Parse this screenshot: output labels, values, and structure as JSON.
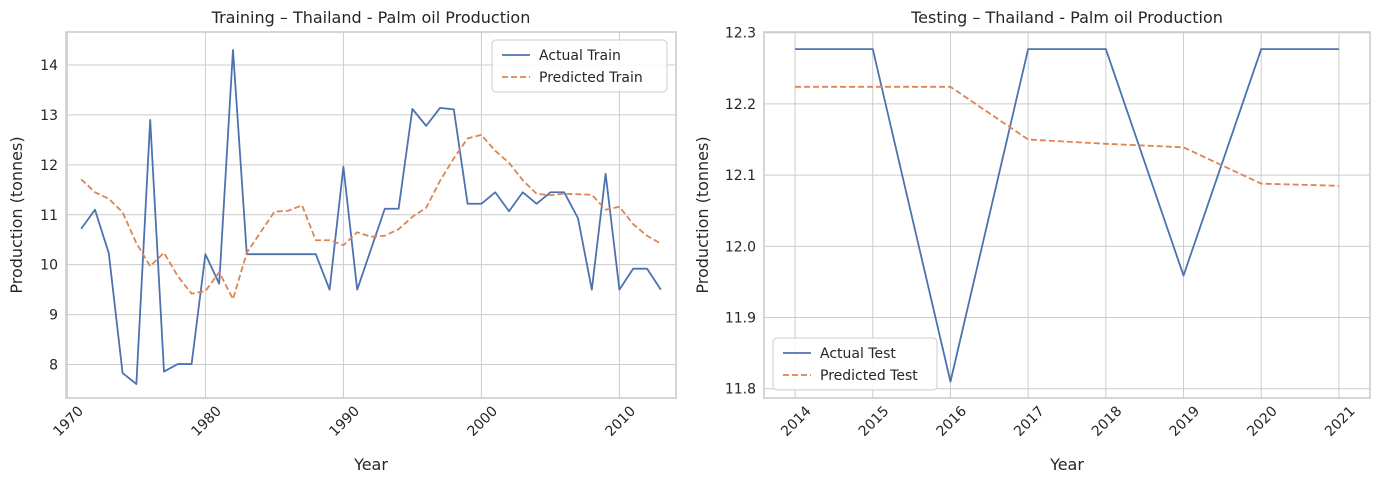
{
  "chart_data": [
    {
      "type": "line",
      "title": "Training – Thailand - Palm oil Production",
      "xlabel": "Year",
      "ylabel": "Production (tonnes)",
      "xlim": [
        1969.9,
        2014.1
      ],
      "ylim": [
        7.33,
        14.66
      ],
      "xticks": [
        1970,
        1980,
        1990,
        2000,
        2010
      ],
      "yticks": [
        8,
        9,
        10,
        11,
        12,
        13,
        14
      ],
      "grid": true,
      "legend_position": "top-right",
      "x": [
        1971,
        1972,
        1973,
        1974,
        1975,
        1976,
        1977,
        1978,
        1979,
        1980,
        1981,
        1982,
        1983,
        1984,
        1985,
        1986,
        1987,
        1988,
        1989,
        1990,
        1991,
        1992,
        1993,
        1994,
        1995,
        1996,
        1997,
        1998,
        1999,
        2000,
        2001,
        2002,
        2003,
        2004,
        2005,
        2006,
        2007,
        2008,
        2009,
        2010,
        2011,
        2012,
        2013
      ],
      "series": [
        {
          "name": "Actual Train",
          "color": "#4c72b0",
          "dash": "solid",
          "values": [
            10.72,
            11.1,
            10.23,
            7.83,
            7.61,
            12.9,
            7.86,
            8.01,
            8.01,
            10.21,
            9.62,
            14.3,
            10.21,
            10.21,
            10.21,
            10.21,
            10.21,
            10.21,
            9.5,
            11.96,
            9.5,
            10.31,
            11.12,
            11.12,
            13.12,
            12.78,
            13.14,
            13.11,
            11.22,
            11.22,
            11.45,
            11.07,
            11.45,
            11.22,
            11.45,
            11.45,
            10.93,
            9.5,
            11.82,
            9.5,
            9.92,
            9.92,
            9.5
          ]
        },
        {
          "name": "Predicted Train",
          "color": "#dd8452",
          "dash": "dashed",
          "values": [
            11.71,
            11.45,
            11.32,
            11.05,
            10.43,
            9.97,
            10.24,
            9.77,
            9.42,
            9.47,
            9.85,
            9.31,
            10.24,
            10.65,
            11.06,
            11.08,
            11.19,
            10.49,
            10.49,
            10.39,
            10.65,
            10.56,
            10.58,
            10.71,
            10.96,
            11.14,
            11.68,
            12.13,
            12.53,
            12.6,
            12.28,
            12.04,
            11.69,
            11.42,
            11.39,
            11.42,
            11.41,
            11.4,
            11.1,
            11.16,
            10.81,
            10.58,
            10.42
          ]
        }
      ]
    },
    {
      "type": "line",
      "title": "Testing – Thailand - Palm oil Production",
      "xlabel": "Year",
      "ylabel": "Production (tonnes)",
      "xlim": [
        2013.6,
        2021.4
      ],
      "ylim": [
        11.787,
        12.301
      ],
      "xticks": [
        2014,
        2015,
        2016,
        2017,
        2018,
        2019,
        2020,
        2021
      ],
      "yticks": [
        11.8,
        11.9,
        12.0,
        12.1,
        12.2,
        12.3
      ],
      "ytick_labels": [
        "11.8",
        "11.9",
        "12.0",
        "12.1",
        "12.2",
        "12.3"
      ],
      "grid": true,
      "legend_position": "bottom-left",
      "x": [
        2014,
        2015,
        2016,
        2017,
        2018,
        2019,
        2020,
        2021
      ],
      "series": [
        {
          "name": "Actual Test",
          "color": "#4c72b0",
          "dash": "solid",
          "values": [
            12.277,
            12.277,
            11.81,
            12.277,
            12.277,
            11.959,
            12.277,
            12.277
          ]
        },
        {
          "name": "Predicted Test",
          "color": "#dd8452",
          "dash": "dashed",
          "values": [
            12.224,
            12.224,
            12.224,
            12.15,
            12.144,
            12.139,
            12.088,
            12.085
          ]
        }
      ]
    }
  ]
}
